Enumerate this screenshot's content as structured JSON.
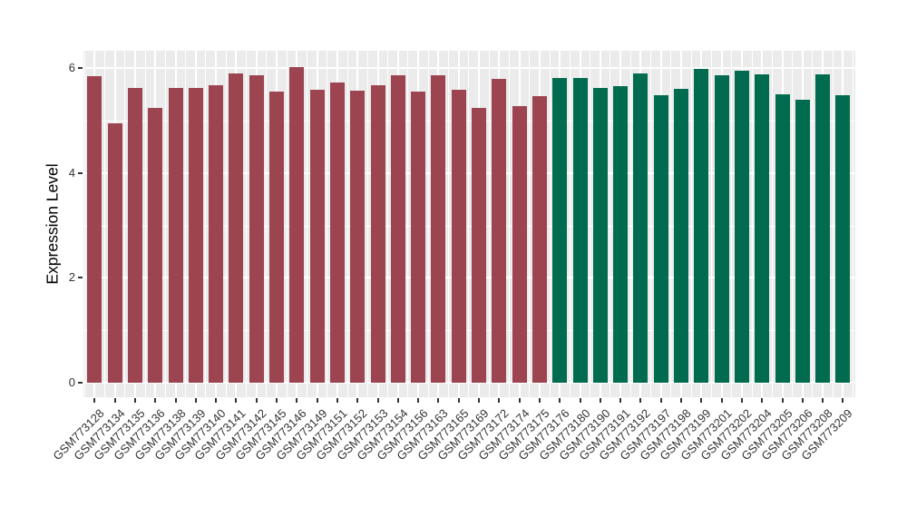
{
  "figure": {
    "ylabel": "Expression Level",
    "colors": {
      "panel_background": "#EBEBEB",
      "grid": "#FFFFFF",
      "axis_text": "#333333",
      "tick_mark": "#333333",
      "group_a_bar": "#9D4451",
      "group_b_bar": "#006B4E"
    }
  },
  "chart_data": {
    "type": "bar",
    "title": "",
    "xlabel": "",
    "ylabel": "Expression Level",
    "ylim": [
      -0.26,
      6.33
    ],
    "y_major_ticks": [
      0,
      2,
      4,
      6
    ],
    "y_minor_ticks": [
      1,
      3,
      5
    ],
    "grid": "on",
    "legend": "none",
    "categories": [
      "GSM773128",
      "GSM773134",
      "GSM773135",
      "GSM773136",
      "GSM773138",
      "GSM773139",
      "GSM773140",
      "GSM773141",
      "GSM773142",
      "GSM773145",
      "GSM773146",
      "GSM773149",
      "GSM773151",
      "GSM773152",
      "GSM773153",
      "GSM773154",
      "GSM773156",
      "GSM773163",
      "GSM773165",
      "GSM773169",
      "GSM773172",
      "GSM773174",
      "GSM773175",
      "GSM773176",
      "GSM773180",
      "GSM773190",
      "GSM773191",
      "GSM773192",
      "GSM773197",
      "GSM773198",
      "GSM773199",
      "GSM773201",
      "GSM773202",
      "GSM773204",
      "GSM773205",
      "GSM773206",
      "GSM773208",
      "GSM773209"
    ],
    "values": [
      5.85,
      4.94,
      5.63,
      5.24,
      5.62,
      5.63,
      5.67,
      5.9,
      5.87,
      5.56,
      6.02,
      5.58,
      5.73,
      5.57,
      5.67,
      5.86,
      5.55,
      5.87,
      5.59,
      5.25,
      5.79,
      5.27,
      5.46,
      5.81,
      5.81,
      5.63,
      5.65,
      5.9,
      5.48,
      5.61,
      5.99,
      5.86,
      5.95,
      5.88,
      5.5,
      5.4,
      5.89,
      5.48
    ],
    "groups": [
      "a",
      "a",
      "a",
      "a",
      "a",
      "a",
      "a",
      "a",
      "a",
      "a",
      "a",
      "a",
      "a",
      "a",
      "a",
      "a",
      "a",
      "a",
      "a",
      "a",
      "a",
      "a",
      "a",
      "b",
      "b",
      "b",
      "b",
      "b",
      "b",
      "b",
      "b",
      "b",
      "b",
      "b",
      "b",
      "b",
      "b",
      "b"
    ],
    "group_colors": {
      "a": "#9D4451",
      "b": "#006B4E"
    }
  }
}
